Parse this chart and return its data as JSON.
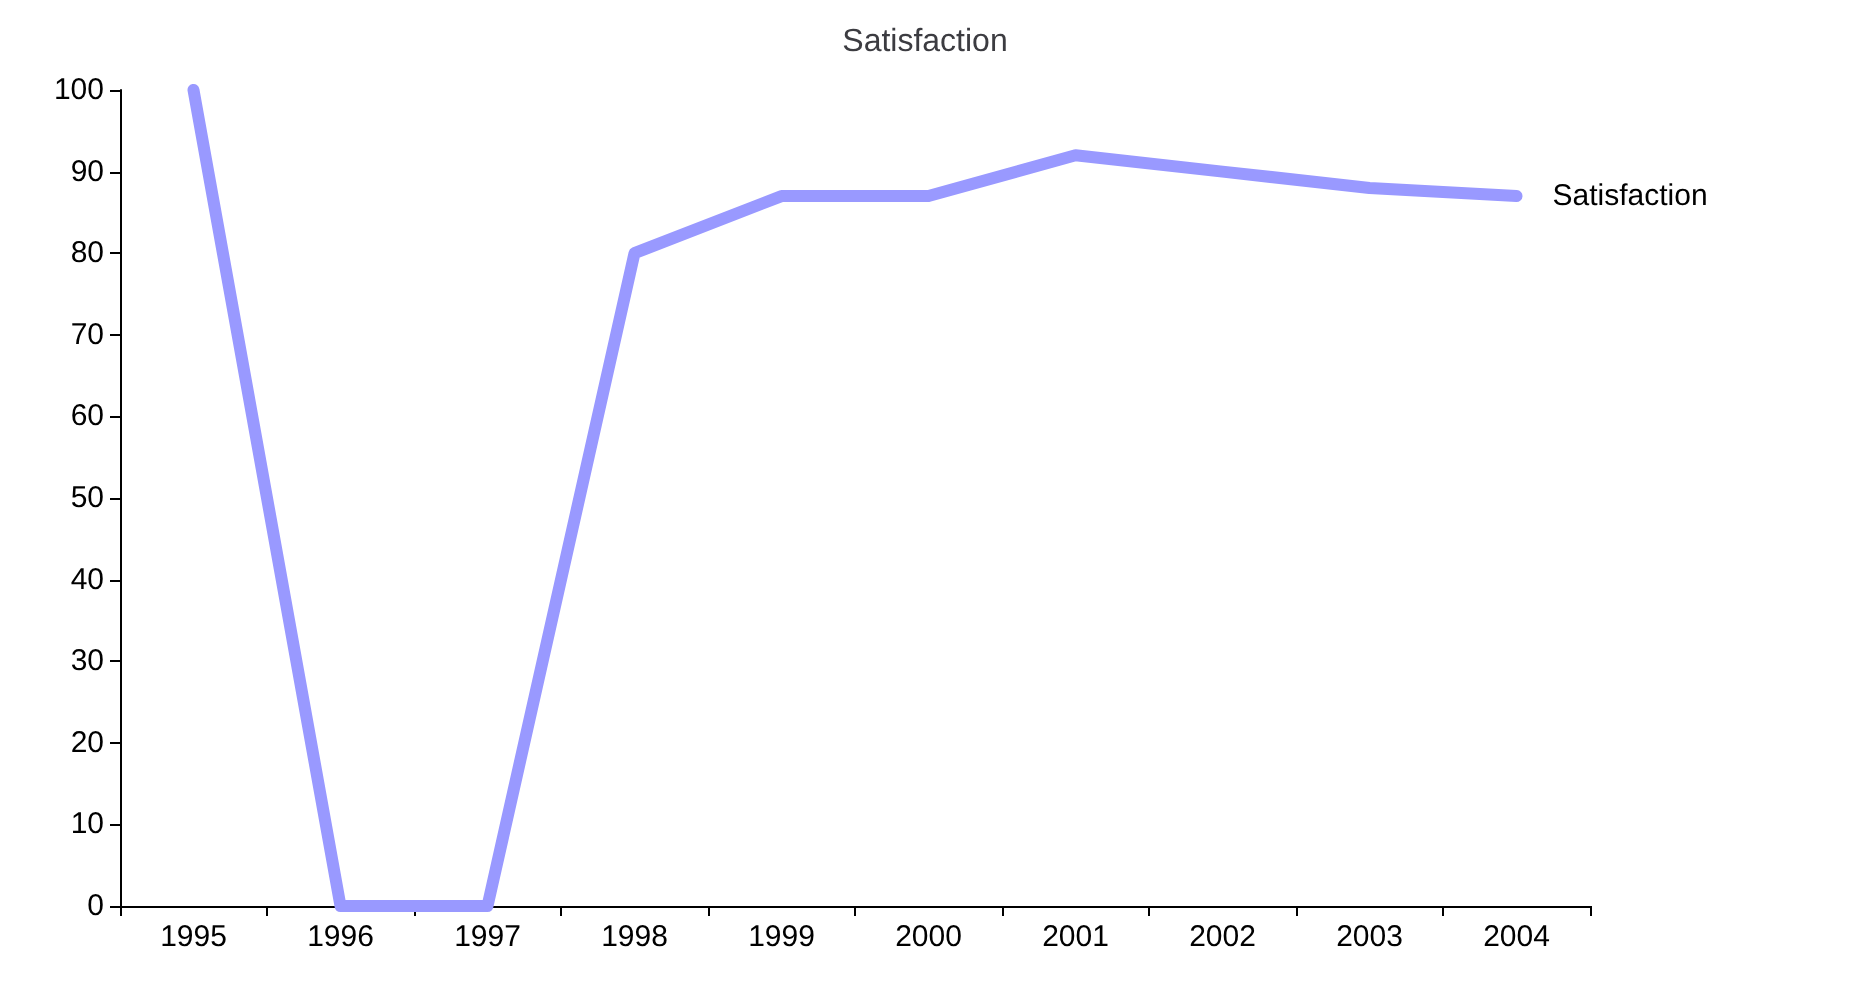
{
  "chart_data": {
    "type": "line",
    "title": "Satisfaction",
    "categories": [
      "1995",
      "1996",
      "1997",
      "1998",
      "1999",
      "2000",
      "2001",
      "2002",
      "2003",
      "2004"
    ],
    "series": [
      {
        "name": "Satisfaction",
        "color": "#9999ff",
        "values": [
          100,
          0,
          0,
          80,
          87,
          87,
          92,
          90,
          88,
          87
        ]
      }
    ],
    "ylim": [
      0,
      100
    ],
    "yticks": [
      0,
      10,
      20,
      30,
      40,
      50,
      60,
      70,
      80,
      90,
      100
    ],
    "grid": false,
    "legend": false,
    "marker": "none",
    "line_style": "solid"
  }
}
